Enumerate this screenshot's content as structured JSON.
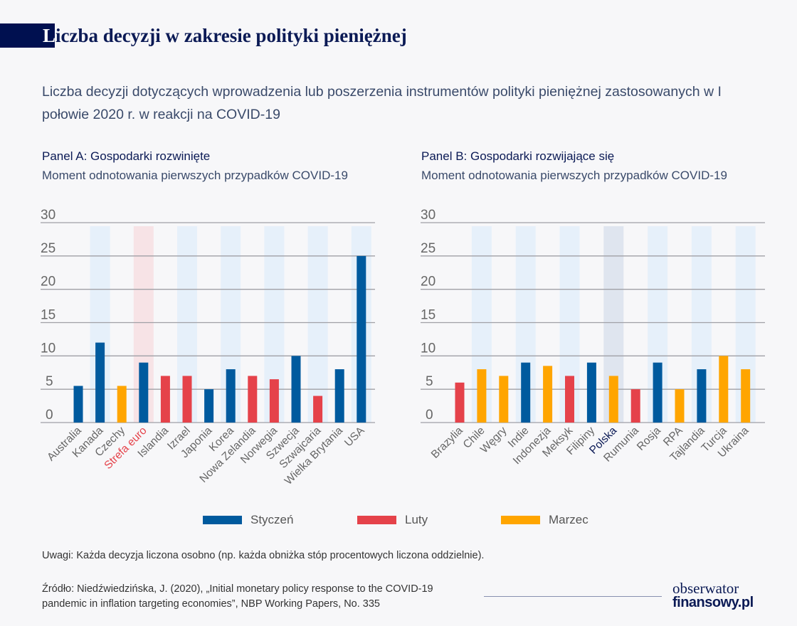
{
  "header": {
    "title_first_letter": "L",
    "title_rest": "iczba decyzji w zakresie polityki pieniężnej",
    "subtitle": "Liczba decyzji dotyczących wprowadzenia lub poszerzenia instrumentów polityki pieniężnej zastosowanych w I połowie 2020 r. w reakcji na COVID-19"
  },
  "colors": {
    "Styczeń": "#005a9e",
    "Luty": "#e5424a",
    "Marzec": "#ffa500",
    "band": "#e6f0fa",
    "band_highlight_euro": "#f7e3e6",
    "band_highlight_polska": "#dfe5ef",
    "title_navy": "#0b1a55"
  },
  "legend": [
    {
      "label": "Styczeń",
      "color": "#005a9e"
    },
    {
      "label": "Luty",
      "color": "#e5424a"
    },
    {
      "label": "Marzec",
      "color": "#ffa500"
    }
  ],
  "chart_data": [
    {
      "type": "bar",
      "title": "Panel A: Gospodarki rozwinięte",
      "subtitle": "Moment odnotowania pierwszych przypadków COVID-19",
      "ylim": [
        0,
        30
      ],
      "yticks": [
        0,
        5,
        10,
        15,
        20,
        25,
        30
      ],
      "grid": true,
      "legend_placement": "bottom",
      "highlight_category": "Strefa euro",
      "categories": [
        "Australia",
        "Kanada",
        "Czechy",
        "Strefa euro",
        "Islandia",
        "Izrael",
        "Japonia",
        "Korea",
        "Nowa Zelandia",
        "Norwegia",
        "Szwecja",
        "Szwajcaria",
        "Wielka Brytania",
        "USA"
      ],
      "values": [
        5.5,
        12,
        5.5,
        9,
        7,
        7,
        5,
        8,
        7,
        6.5,
        10,
        4,
        8,
        25
      ],
      "month": [
        "Styczeń",
        "Styczeń",
        "Marzec",
        "Styczeń",
        "Luty",
        "Luty",
        "Styczeń",
        "Styczeń",
        "Luty",
        "Luty",
        "Styczeń",
        "Luty",
        "Styczeń",
        "Styczeń"
      ]
    },
    {
      "type": "bar",
      "title": "Panel B: Gospodarki rozwijające się",
      "subtitle": "Moment odnotowania pierwszych przypadków COVID-19",
      "ylim": [
        0,
        30
      ],
      "yticks": [
        0,
        5,
        10,
        15,
        20,
        25,
        30
      ],
      "grid": true,
      "legend_placement": "bottom",
      "highlight_category": "Polska",
      "categories": [
        "Brazylia",
        "Chile",
        "Węgry",
        "Indie",
        "Indonezja",
        "Meksyk",
        "Filipiny",
        "Polska",
        "Rumunia",
        "Rosja",
        "RPA",
        "Tajlandia",
        "Turcja",
        "Ukraina"
      ],
      "values": [
        6,
        8,
        7,
        9,
        8.5,
        7,
        9,
        7,
        5,
        9,
        5,
        8,
        10,
        8
      ],
      "month": [
        "Luty",
        "Marzec",
        "Marzec",
        "Styczeń",
        "Marzec",
        "Luty",
        "Styczeń",
        "Marzec",
        "Luty",
        "Styczeń",
        "Marzec",
        "Styczeń",
        "Marzec",
        "Marzec"
      ]
    }
  ],
  "footer": {
    "note": "Uwagi: Każda decyzja liczona osobno (np. każda obniżka stóp procentowych liczona oddzielnie).",
    "source_line1": "Źródło: Niedźwiedzińska, J. (2020), „Initial monetary policy response to the COVID-19",
    "source_line2": "pandemic in inflation targeting economies”, NBP Working Papers, No. 335",
    "logo_line1": "obserwator",
    "logo_line2": "finansowy.pl"
  }
}
